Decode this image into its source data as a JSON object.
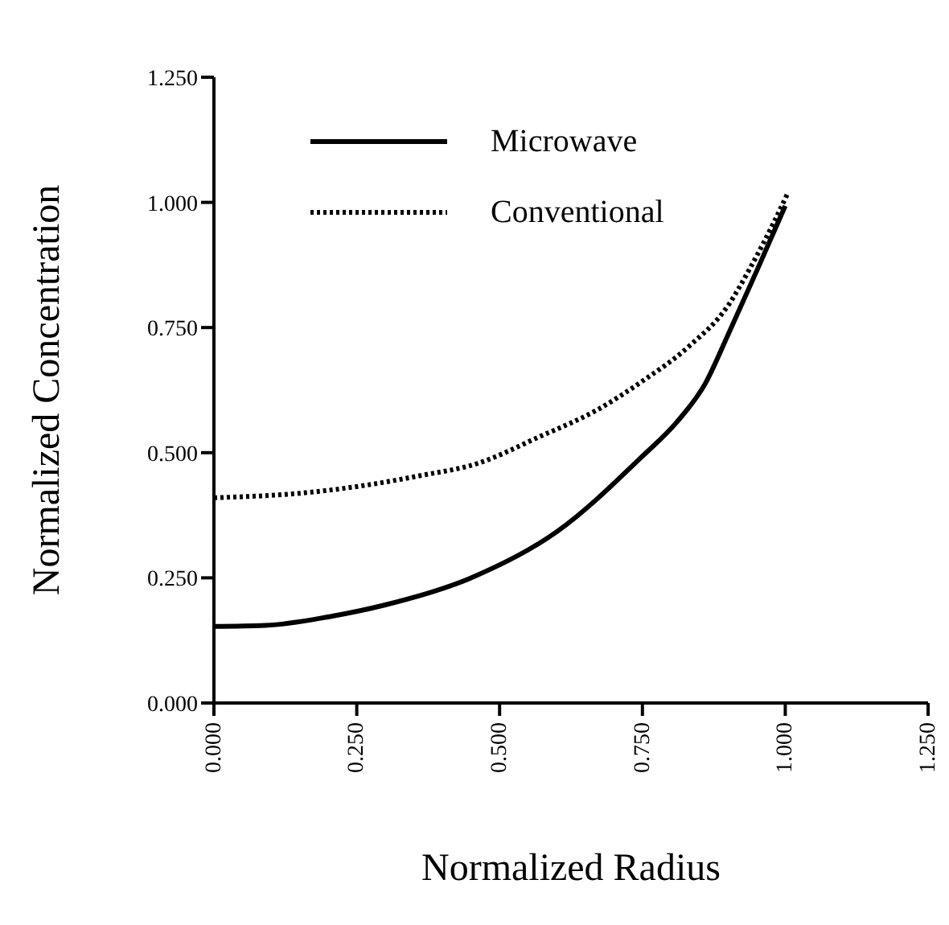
{
  "chart_data": {
    "type": "line",
    "xlabel": "Normalized Radius",
    "ylabel": "Normalized  Concentration",
    "xlim": [
      0,
      1.25
    ],
    "ylim": [
      0,
      1.25
    ],
    "xticks": [
      {
        "value": 0,
        "label": "0.000"
      },
      {
        "value": 0.25,
        "label": "0.250"
      },
      {
        "value": 0.5,
        "label": "0.500"
      },
      {
        "value": 0.75,
        "label": "0.750"
      },
      {
        "value": 1,
        "label": "1.000"
      },
      {
        "value": 1.25,
        "label": "1.250"
      }
    ],
    "yticks": [
      {
        "value": 0,
        "label": "0.000"
      },
      {
        "value": 0.25,
        "label": "0.250"
      },
      {
        "value": 0.5,
        "label": "0.500"
      },
      {
        "value": 0.75,
        "label": "0.750"
      },
      {
        "value": 1,
        "label": "1.000"
      },
      {
        "value": 1.25,
        "label": "1.250"
      }
    ],
    "legend": "top left",
    "marker": "none",
    "series": [
      {
        "name": "Microwave",
        "color": "#000000",
        "line_style": "solid",
        "x": [
          0,
          0.09,
          0.2,
          0.3,
          0.45,
          0.6,
          0.75,
          0.81,
          0.86,
          0.9,
          0.95,
          1.0
        ],
        "values": [
          0.153,
          0.155,
          0.172,
          0.196,
          0.25,
          0.342,
          0.493,
          0.561,
          0.638,
          0.736,
          0.863,
          0.993
        ]
      },
      {
        "name": "Conventional",
        "color": "#000000",
        "line_style": "dotted",
        "x": [
          0,
          0.16,
          0.26,
          0.36,
          0.46,
          0.57,
          0.67,
          0.75,
          0.83,
          0.9,
          0.94,
          0.98,
          1.005
        ],
        "values": [
          0.41,
          0.42,
          0.434,
          0.454,
          0.478,
          0.532,
          0.585,
          0.643,
          0.711,
          0.794,
          0.872,
          0.96,
          1.02
        ]
      }
    ]
  }
}
